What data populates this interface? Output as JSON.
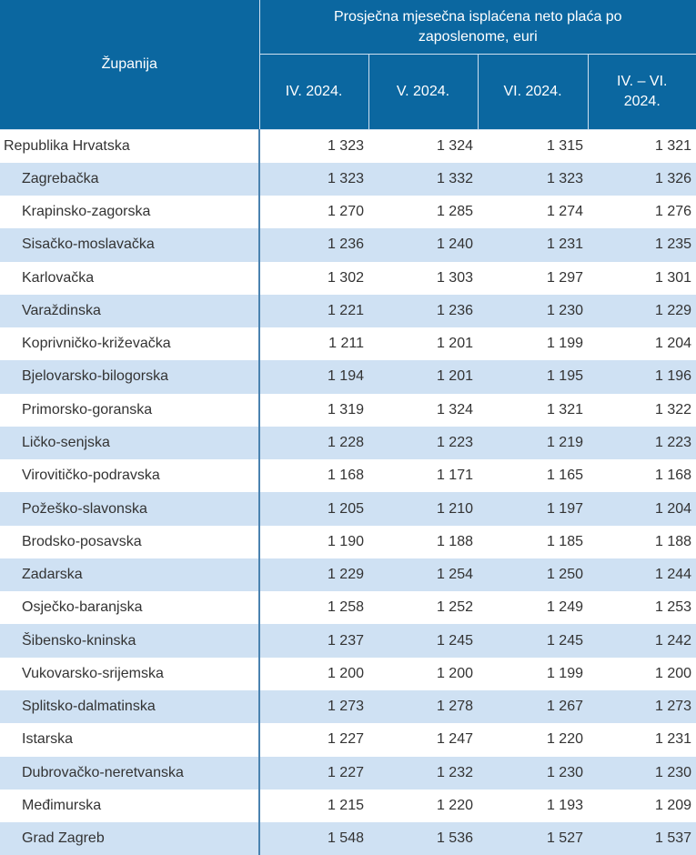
{
  "table": {
    "header": {
      "county_label": "Županija",
      "group_label": "Prosječna mjesečna isplaćena neto plaća po zaposlenome, euri",
      "columns": [
        "IV. 2024.",
        "V. 2024.",
        "VI. 2024.",
        "IV. – VI. 2024."
      ]
    },
    "rows": [
      {
        "name": "Republika Hrvatska",
        "values": [
          "1 323",
          "1 324",
          "1 315",
          "1 321"
        ]
      },
      {
        "name": "Zagrebačka",
        "values": [
          "1 323",
          "1 332",
          "1 323",
          "1 326"
        ]
      },
      {
        "name": "Krapinsko-zagorska",
        "values": [
          "1 270",
          "1 285",
          "1 274",
          "1 276"
        ]
      },
      {
        "name": "Sisačko-moslavačka",
        "values": [
          "1 236",
          "1 240",
          "1 231",
          "1 235"
        ]
      },
      {
        "name": "Karlovačka",
        "values": [
          "1 302",
          "1 303",
          "1 297",
          "1 301"
        ]
      },
      {
        "name": "Varaždinska",
        "values": [
          "1 221",
          "1 236",
          "1 230",
          "1 229"
        ]
      },
      {
        "name": "Koprivničko-križevačka",
        "values": [
          "1 211",
          "1 201",
          "1 199",
          "1 204"
        ]
      },
      {
        "name": "Bjelovarsko-bilogorska",
        "values": [
          "1 194",
          "1 201",
          "1 195",
          "1 196"
        ]
      },
      {
        "name": "Primorsko-goranska",
        "values": [
          "1 319",
          "1 324",
          "1 321",
          "1 322"
        ]
      },
      {
        "name": "Ličko-senjska",
        "values": [
          "1 228",
          "1 223",
          "1 219",
          "1 223"
        ]
      },
      {
        "name": "Virovitičko-podravska",
        "values": [
          "1 168",
          "1 171",
          "1 165",
          "1 168"
        ]
      },
      {
        "name": "Požeško-slavonska",
        "values": [
          "1 205",
          "1 210",
          "1 197",
          "1 204"
        ]
      },
      {
        "name": "Brodsko-posavska",
        "values": [
          "1 190",
          "1 188",
          "1 185",
          "1 188"
        ]
      },
      {
        "name": "Zadarska",
        "values": [
          "1 229",
          "1 254",
          "1 250",
          "1 244"
        ]
      },
      {
        "name": "Osječko-baranjska",
        "values": [
          "1 258",
          "1 252",
          "1 249",
          "1 253"
        ]
      },
      {
        "name": "Šibensko-kninska",
        "values": [
          "1 237",
          "1 245",
          "1 245",
          "1 242"
        ]
      },
      {
        "name": "Vukovarsko-srijemska",
        "values": [
          "1 200",
          "1 200",
          "1 199",
          "1 200"
        ]
      },
      {
        "name": "Splitsko-dalmatinska",
        "values": [
          "1 273",
          "1 278",
          "1 267",
          "1 273"
        ]
      },
      {
        "name": "Istarska",
        "values": [
          "1 227",
          "1 247",
          "1 220",
          "1 231"
        ]
      },
      {
        "name": "Dubrovačko-neretvanska",
        "values": [
          "1 227",
          "1 232",
          "1 230",
          "1 230"
        ]
      },
      {
        "name": "Međimurska",
        "values": [
          "1 215",
          "1 220",
          "1 193",
          "1 209"
        ]
      },
      {
        "name": "Grad Zagreb",
        "values": [
          "1 548",
          "1 536",
          "1 527",
          "1 537"
        ]
      }
    ]
  }
}
